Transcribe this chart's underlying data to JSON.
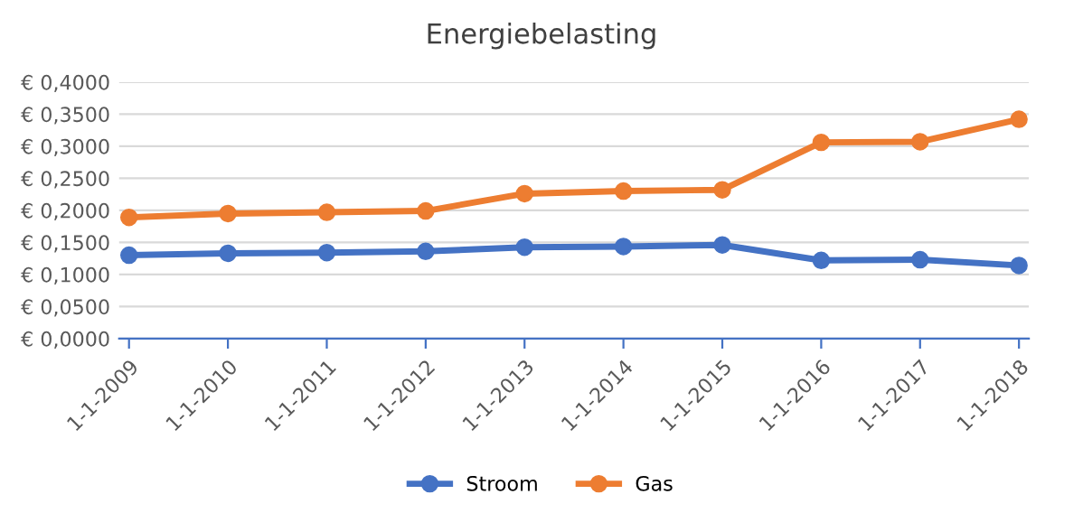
{
  "chart_data": {
    "type": "line",
    "title": "Energiebelasting",
    "categories": [
      "1-1-2009",
      "1-1-2010",
      "1-1-2011",
      "1-1-2012",
      "1-1-2013",
      "1-1-2014",
      "1-1-2015",
      "1-1-2016",
      "1-1-2017",
      "1-1-2018"
    ],
    "series": [
      {
        "name": "Stroom",
        "color": "#4472c4",
        "values": [
          0.13,
          0.133,
          0.134,
          0.136,
          0.1425,
          0.1435,
          0.146,
          0.122,
          0.123,
          0.114
        ]
      },
      {
        "name": "Gas",
        "color": "#ed7d31",
        "values": [
          0.189,
          0.195,
          0.197,
          0.199,
          0.226,
          0.23,
          0.232,
          0.306,
          0.307,
          0.342
        ]
      }
    ],
    "ylim": [
      0,
      0.4
    ],
    "yticks": [
      {
        "value": 0,
        "label": "€ 0,0000"
      },
      {
        "value": 0.05,
        "label": "€ 0,0500"
      },
      {
        "value": 0.1,
        "label": "€ 0,1000"
      },
      {
        "value": 0.15,
        "label": "€ 0,1500"
      },
      {
        "value": 0.2,
        "label": "€ 0,2000"
      },
      {
        "value": 0.25,
        "label": "€ 0,2500"
      },
      {
        "value": 0.3,
        "label": "€ 0,3000"
      },
      {
        "value": 0.35,
        "label": "€ 0,3500"
      },
      {
        "value": 0.4,
        "label": "€ 0,4000"
      }
    ],
    "grid": "y",
    "legend": "bottom",
    "marker": "circle",
    "line_style": "solid"
  }
}
